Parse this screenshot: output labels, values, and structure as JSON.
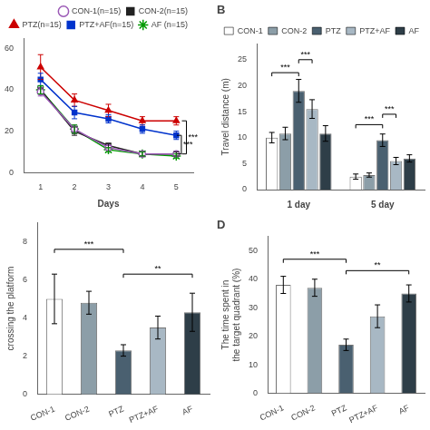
{
  "chart_data": [
    {
      "type": "line",
      "xlabel": "Days",
      "x": [
        1,
        2,
        3,
        4,
        5
      ],
      "series": [
        {
          "name": "CON-1(n=15)",
          "color": "#9B59B6",
          "marker": "circle-open",
          "values": [
            39,
            21,
            12,
            9,
            9
          ],
          "errors": [
            2,
            2,
            1,
            1,
            1
          ]
        },
        {
          "name": "CON-2(n=15)",
          "color": "#222222",
          "marker": "square",
          "values": [
            40,
            20,
            13,
            9,
            9
          ],
          "errors": [
            2,
            2,
            1,
            1,
            1
          ]
        },
        {
          "name": "PTZ(n=15)",
          "color": "#CC0000",
          "marker": "triangle",
          "values": [
            51,
            35,
            30,
            25,
            25
          ],
          "errors": [
            6,
            3,
            3,
            2,
            2
          ]
        },
        {
          "name": "PTZ+AF(n=15)",
          "color": "#0033CC",
          "marker": "square",
          "values": [
            45,
            29,
            26,
            21,
            18
          ],
          "errors": [
            3,
            3,
            2,
            2,
            2
          ]
        },
        {
          "name": "AF (n=15)",
          "color": "#009900",
          "marker": "star",
          "values": [
            40,
            21,
            11,
            9,
            8
          ],
          "errors": [
            2,
            2,
            1,
            1,
            1
          ]
        }
      ],
      "xlim": [
        0.5,
        5.5
      ],
      "xticks": [
        1,
        2,
        3,
        4,
        5
      ],
      "ylim": [
        0,
        65
      ],
      "yticks": [
        0,
        20,
        40,
        60
      ],
      "legend": "upper right",
      "grid": false,
      "annotations": [
        {
          "text": "***",
          "x": 5.3,
          "y": [
            9,
            25
          ]
        },
        {
          "text": "***",
          "x": 5.15,
          "y": [
            9,
            18
          ]
        }
      ]
    },
    {
      "type": "bar",
      "title": "B",
      "ylabel": "Travel distance (m)",
      "categories": [
        "1 day",
        "5 day"
      ],
      "series": [
        {
          "name": "CON-1",
          "color": "#FFFFFF",
          "values": [
            10.0,
            2.5
          ],
          "errors": [
            1.0,
            0.5
          ]
        },
        {
          "name": "CON-2",
          "color": "#8C9EA8",
          "values": [
            10.8,
            2.8
          ],
          "errors": [
            1.2,
            0.4
          ]
        },
        {
          "name": "PTZ",
          "color": "#4A6070",
          "values": [
            19.0,
            9.5
          ],
          "errors": [
            2.2,
            1.2
          ]
        },
        {
          "name": "PTZ+AF",
          "color": "#A8B8C4",
          "values": [
            15.5,
            5.5
          ],
          "errors": [
            1.8,
            0.7
          ]
        },
        {
          "name": "AF",
          "color": "#2E3E48",
          "values": [
            10.8,
            6.0
          ],
          "errors": [
            1.5,
            0.7
          ]
        }
      ],
      "ylim": [
        0,
        28
      ],
      "yticks": [
        0,
        5,
        10,
        15,
        20,
        25
      ],
      "legend": "upper right",
      "grid": false,
      "annotations": [
        {
          "text": "***",
          "group": "1 day",
          "from": "CON-1",
          "to": "PTZ",
          "y": 22.5
        },
        {
          "text": "***",
          "group": "1 day",
          "from": "PTZ",
          "to": "PTZ+AF",
          "y": 25.0
        },
        {
          "text": "***",
          "group": "5 day",
          "from": "CON-1",
          "to": "PTZ",
          "y": 12.5
        },
        {
          "text": "***",
          "group": "5 day",
          "from": "PTZ",
          "to": "PTZ+AF",
          "y": 14.5
        }
      ]
    },
    {
      "type": "bar",
      "ylabel": "crossing the platform",
      "categories": [
        "CON-1",
        "CON-2",
        "PTZ",
        "PTZ+AF",
        "AF"
      ],
      "values": [
        5.0,
        4.8,
        2.3,
        3.5,
        4.3
      ],
      "errors": [
        1.3,
        0.6,
        0.3,
        0.6,
        1.0
      ],
      "colors": [
        "#FFFFFF",
        "#8C9EA8",
        "#4A6070",
        "#A8B8C4",
        "#2E3E48"
      ],
      "ylim": [
        0,
        9
      ],
      "yticks": [
        0,
        2,
        4,
        6,
        8
      ],
      "grid": false,
      "annotations": [
        {
          "text": "***",
          "from": "CON-1",
          "to": "PTZ",
          "y": 7.6
        },
        {
          "text": "**",
          "from": "PTZ",
          "to": "AF",
          "y": 6.3
        }
      ]
    },
    {
      "type": "bar",
      "title": "D",
      "ylabel": "The time spent in\nthe target quadrant (%)",
      "categories": [
        "CON-1",
        "CON-2",
        "PTZ",
        "PTZ+AF",
        "AF"
      ],
      "values": [
        38,
        37,
        17,
        27,
        35
      ],
      "errors": [
        3,
        3,
        2,
        4,
        3
      ],
      "colors": [
        "#FFFFFF",
        "#8C9EA8",
        "#4A6070",
        "#A8B8C4",
        "#2E3E48"
      ],
      "ylim": [
        0,
        55
      ],
      "yticks": [
        0,
        10,
        20,
        30,
        40,
        50
      ],
      "grid": false,
      "annotations": [
        {
          "text": "***",
          "from": "CON-1",
          "to": "PTZ",
          "y": 47
        },
        {
          "text": "**",
          "from": "PTZ",
          "to": "AF",
          "y": 43
        }
      ]
    }
  ]
}
